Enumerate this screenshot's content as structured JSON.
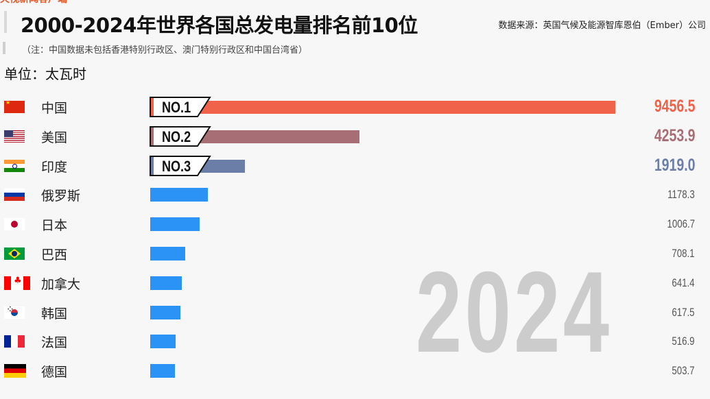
{
  "header": {
    "title": "2000-2024年世界各国总发电量排名前10位",
    "source": "数据来源：英国气候及能源智库恩伯（Ember）公司",
    "note": "（注：中国数据未包括香港特别行政区、澳门特别行政区和中国台湾省）",
    "unit": "单位：太瓦时"
  },
  "year_label": "2024",
  "chart_data": {
    "type": "bar",
    "orientation": "horizontal",
    "title": "2000-2024年世界各国总发电量排名前10位",
    "subtitle": "（注：中国数据未包括香港特别行政区、澳门特别行政区和中国台湾省）",
    "unit": "太瓦时",
    "year": 2024,
    "categories": [
      "中国",
      "美国",
      "印度",
      "俄罗斯",
      "日本",
      "巴西",
      "加拿大",
      "韩国",
      "法国",
      "德国"
    ],
    "values": [
      9456.5,
      4253.9,
      1919.0,
      1178.3,
      1006.7,
      708.1,
      641.4,
      617.5,
      516.9,
      503.7
    ],
    "value_labels": [
      "9456.5",
      "4253.9",
      "1919.0",
      "1178.3",
      "1006.7",
      "708.1",
      "641.4",
      "617.5",
      "516.9",
      "503.7"
    ],
    "ranks": [
      "NO.1",
      "NO.2",
      "NO.3",
      "",
      "",
      "",
      "",
      "",
      "",
      ""
    ],
    "colors": [
      "#f0634a",
      "#a86e76",
      "#6b7ea8",
      "#2b93f5",
      "#2b93f5",
      "#2b93f5",
      "#2b93f5",
      "#2b93f5",
      "#2b93f5",
      "#2b93f5"
    ],
    "xlabel": "",
    "ylabel": "",
    "grid": false,
    "legend": "none"
  },
  "rows": [
    {
      "country": "中国",
      "flag": "china-flag",
      "value": "9456.5",
      "rank": "NO.1",
      "color": "#f0634a"
    },
    {
      "country": "美国",
      "flag": "usa-flag",
      "value": "4253.9",
      "rank": "NO.2",
      "color": "#a86e76"
    },
    {
      "country": "印度",
      "flag": "india-flag",
      "value": "1919.0",
      "rank": "NO.3",
      "color": "#6b7ea8"
    },
    {
      "country": "俄罗斯",
      "flag": "russia-flag",
      "value": "1178.3"
    },
    {
      "country": "日本",
      "flag": "japan-flag",
      "value": "1006.7"
    },
    {
      "country": "巴西",
      "flag": "brazil-flag",
      "value": "708.1"
    },
    {
      "country": "加拿大",
      "flag": "canada-flag",
      "value": "641.4"
    },
    {
      "country": "韩国",
      "flag": "south-korea-flag",
      "value": "617.5"
    },
    {
      "country": "法国",
      "flag": "france-flag",
      "value": "516.9"
    },
    {
      "country": "德国",
      "flag": "germany-flag",
      "value": "503.7"
    }
  ]
}
